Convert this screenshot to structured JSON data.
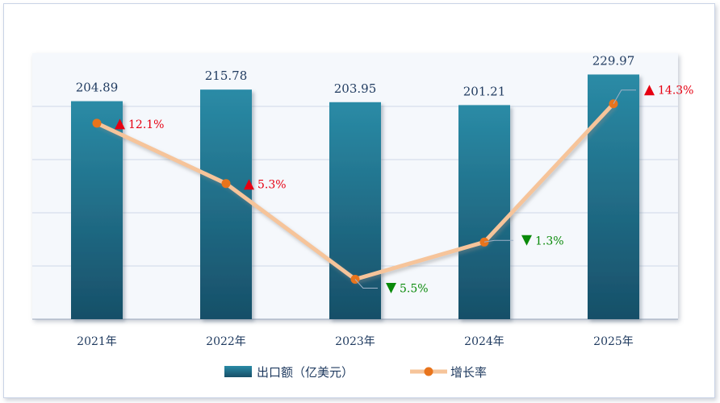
{
  "chart_data": {
    "type": "bar",
    "categories": [
      "2021年",
      "2022年",
      "2023年",
      "2024年",
      "2025年"
    ],
    "series": [
      {
        "name": "出口额（亿美元）",
        "type": "bar",
        "values": [
          204.89,
          215.78,
          203.95,
          201.21,
          229.97
        ]
      },
      {
        "name": "增长率",
        "type": "line",
        "values": [
          12.1,
          5.3,
          -5.5,
          -1.3,
          14.3
        ]
      }
    ],
    "value_labels": [
      "204.89",
      "215.78",
      "203.95",
      "201.21",
      "229.97"
    ],
    "rate_labels": [
      "12.1%",
      "5.3%",
      "5.5%",
      "1.3%",
      "14.3%"
    ],
    "rate_direction": [
      "up",
      "up",
      "down",
      "down",
      "up"
    ],
    "title": "",
    "xlabel": "",
    "ylabel": "",
    "ylim": [
      0,
      250
    ],
    "y2lim": [
      -10,
      20
    ],
    "grid": true,
    "legend": "bottom",
    "colors": {
      "bar_top": "#2a8ba6",
      "bar_bottom": "#174f68",
      "line": "#f6c49a",
      "marker": "#e8741c",
      "up": "#e60012",
      "down": "#0a8a0a",
      "text": "#1f3a5f",
      "grid": "#cfd9e8",
      "plot_bg": "#f5f8fc"
    }
  }
}
